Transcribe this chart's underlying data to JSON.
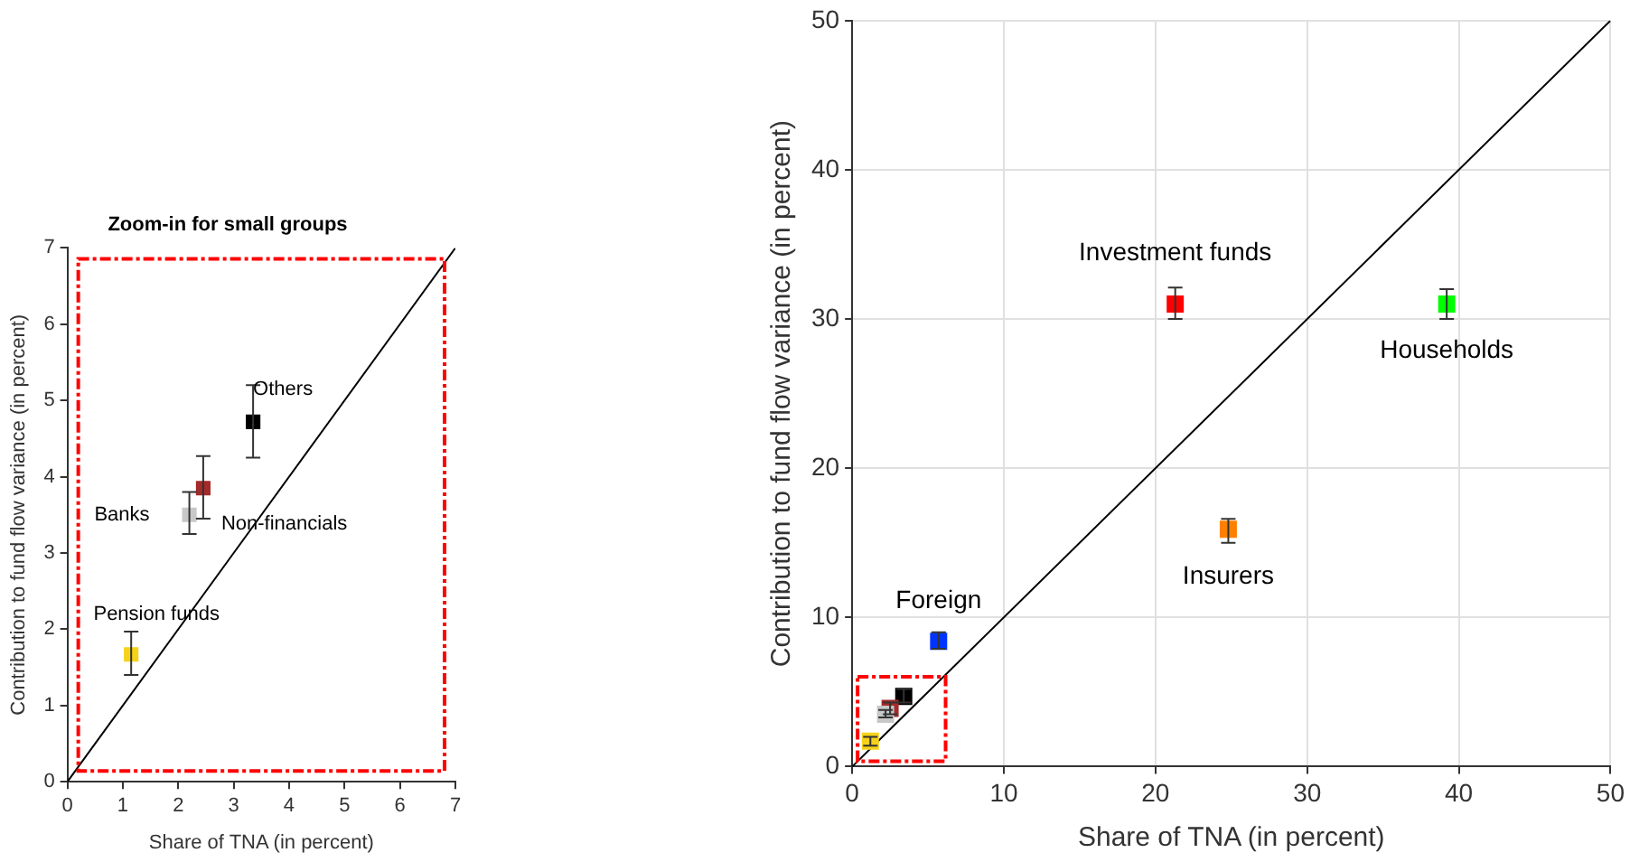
{
  "chart_data": [
    {
      "type": "scatter",
      "title": "Zoom-in for small groups",
      "xlabel": "Share of TNA (in percent)",
      "ylabel": "Contribution to fund flow variance (in percent)",
      "xlim": [
        0,
        7
      ],
      "ylim": [
        0,
        7
      ],
      "xticks": [
        0,
        1,
        2,
        3,
        4,
        5,
        6,
        7
      ],
      "yticks": [
        0,
        1,
        2,
        3,
        4,
        5,
        6,
        7
      ],
      "grid": false,
      "legend": false,
      "marker": "square",
      "series": [
        {
          "type": "line",
          "color": "#000000",
          "marker": "none",
          "x": [
            0,
            7
          ],
          "values": [
            0,
            7
          ]
        },
        {
          "name": "Pension funds",
          "color": "#f5d21a",
          "x": [
            1.15
          ],
          "values": [
            1.67
          ],
          "errors": [
            [
              1.4,
              1.97
            ]
          ]
        },
        {
          "name": "Banks",
          "color": "#c8c8c8",
          "x": [
            2.2
          ],
          "values": [
            3.5
          ],
          "errors": [
            [
              3.25,
              3.8
            ]
          ]
        },
        {
          "name": "Non-financials",
          "color": "#a52a2a",
          "x": [
            2.45
          ],
          "values": [
            3.85
          ],
          "errors": [
            [
              3.45,
              4.27
            ]
          ]
        },
        {
          "name": "Others",
          "color": "#000000",
          "x": [
            3.35
          ],
          "values": [
            4.72
          ],
          "errors": [
            [
              4.25,
              5.2
            ]
          ]
        }
      ]
    },
    {
      "type": "scatter",
      "xlabel": "Share of TNA (in percent)",
      "ylabel": "Contribution to fund flow variance (in percent)",
      "xlim": [
        0,
        50
      ],
      "ylim": [
        0,
        50
      ],
      "xticks": [
        0,
        10,
        20,
        30,
        40,
        50
      ],
      "yticks": [
        0,
        10,
        20,
        30,
        40,
        50
      ],
      "grid": true,
      "legend": false,
      "marker": "square",
      "series": [
        {
          "type": "line",
          "color": "#000000",
          "marker": "none",
          "x": [
            0,
            50
          ],
          "values": [
            0,
            50
          ]
        },
        {
          "color": "#f5d21a",
          "x": [
            1.2
          ],
          "values": [
            1.7
          ],
          "errors": [
            [
              1.4,
              2.0
            ]
          ]
        },
        {
          "color": "#c8c8c8",
          "x": [
            2.2
          ],
          "values": [
            3.5
          ],
          "errors": [
            [
              3.3,
              3.8
            ]
          ]
        },
        {
          "color": "#a52a2a",
          "x": [
            2.5
          ],
          "values": [
            3.9
          ],
          "errors": [
            [
              3.5,
              4.3
            ]
          ]
        },
        {
          "color": "#000000",
          "x": [
            3.4
          ],
          "values": [
            4.7
          ],
          "errors": [
            [
              4.3,
              5.2
            ]
          ]
        },
        {
          "name": "Foreign",
          "color": "#0033ff",
          "x": [
            5.7
          ],
          "values": [
            8.4
          ],
          "errors": [
            [
              7.9,
              9.0
            ]
          ]
        },
        {
          "name": "Investment funds",
          "color": "#ff0000",
          "x": [
            21.3
          ],
          "values": [
            31
          ],
          "errors": [
            [
              30,
              32.1
            ]
          ]
        },
        {
          "name": "Households",
          "color": "#00ff00",
          "x": [
            39.2
          ],
          "values": [
            31
          ],
          "errors": [
            [
              30,
              32
            ]
          ]
        },
        {
          "name": "Insurers",
          "color": "#ff8000",
          "x": [
            24.8
          ],
          "values": [
            15.9
          ],
          "errors": [
            [
              15,
              16.6
            ]
          ]
        }
      ]
    }
  ]
}
